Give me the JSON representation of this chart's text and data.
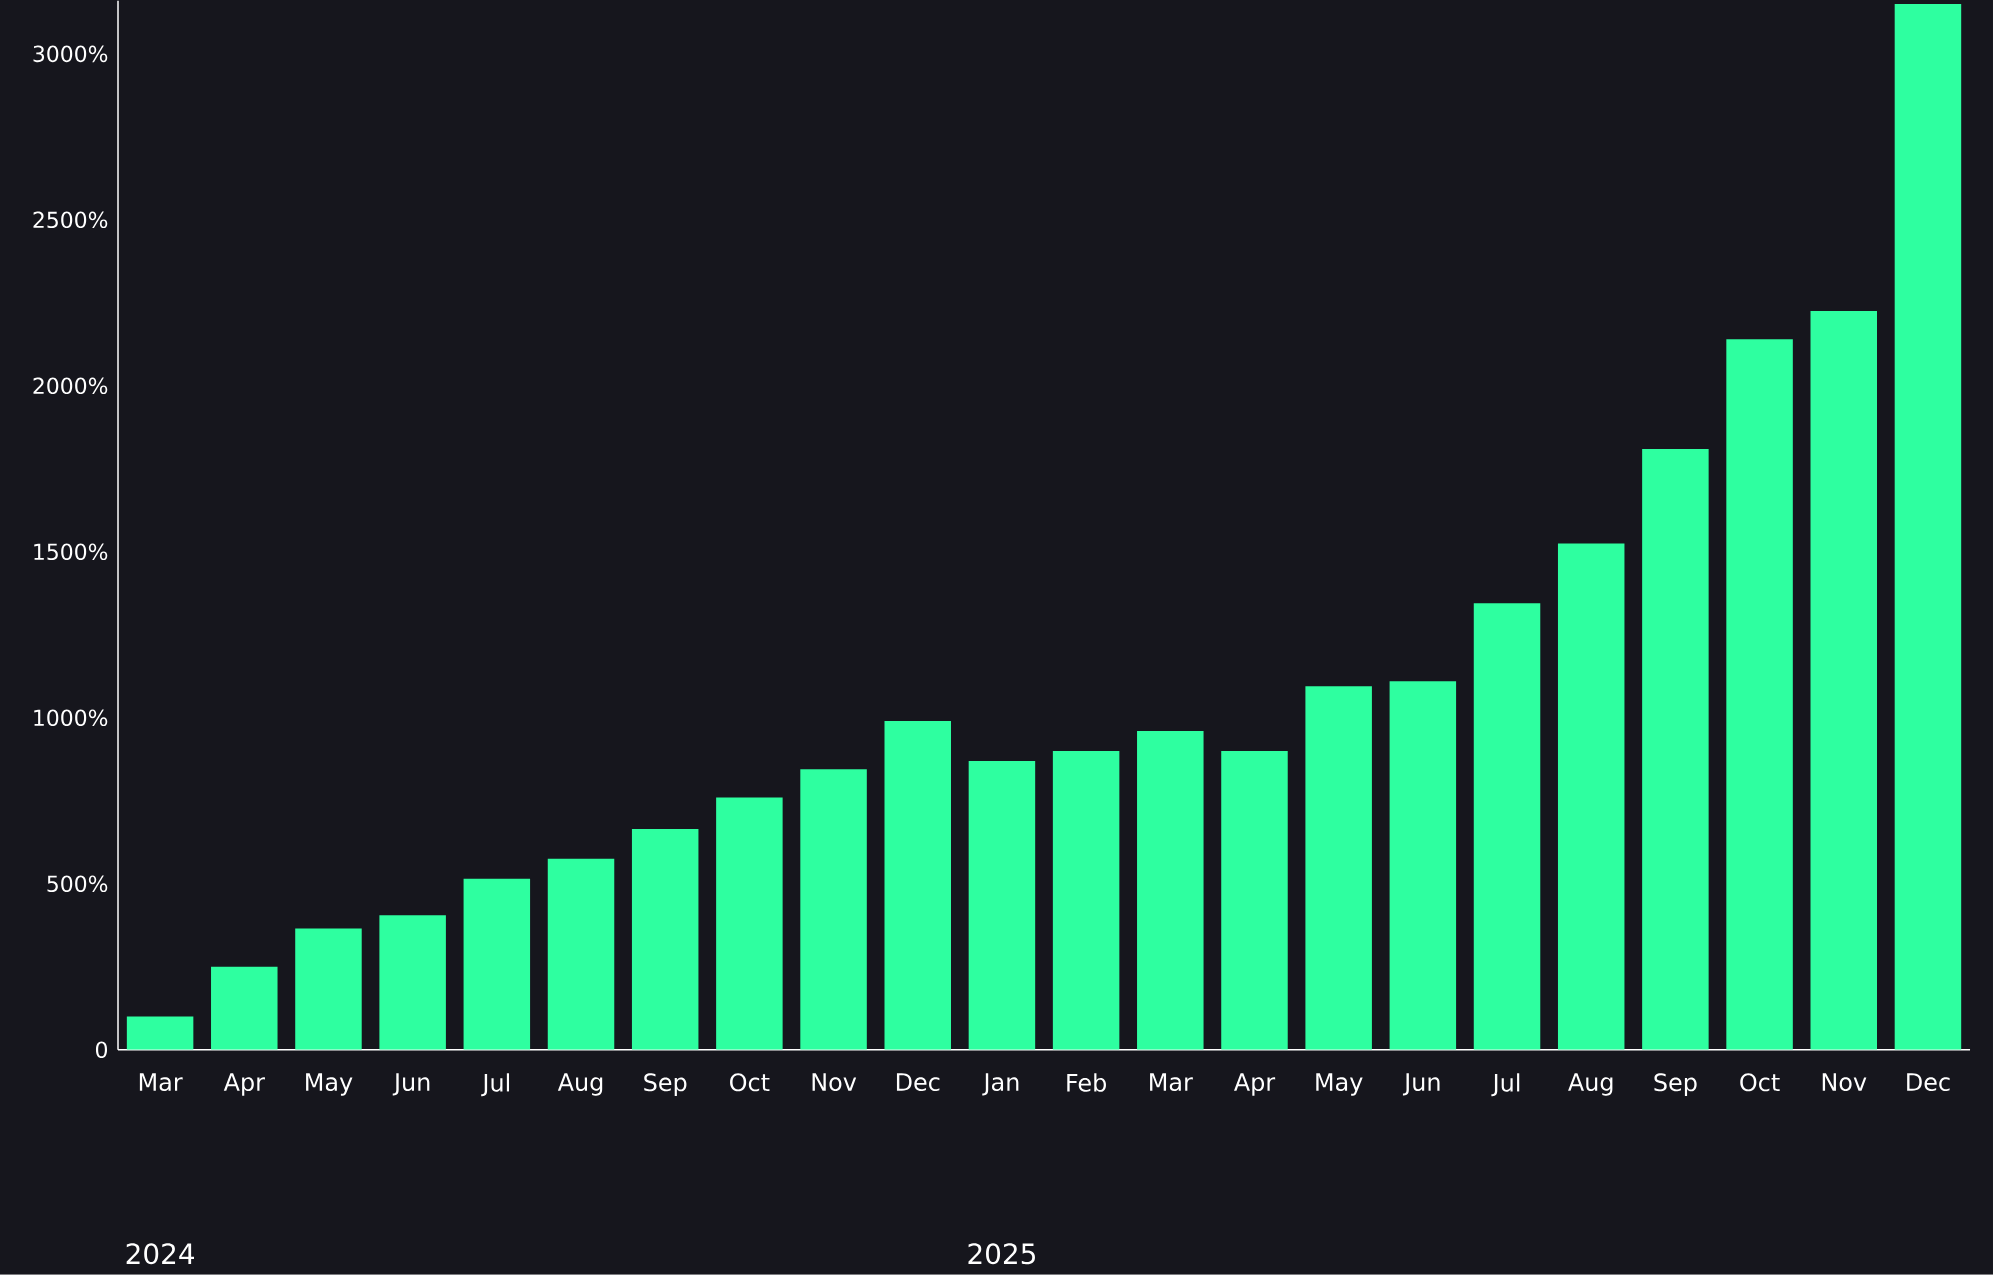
{
  "chart_data": {
    "type": "bar",
    "categories": [
      "Mar",
      "Apr",
      "May",
      "Jun",
      "Jul",
      "Aug",
      "Sep",
      "Oct",
      "Nov",
      "Dec",
      "Jan",
      "Feb",
      "Mar",
      "Apr",
      "May",
      "Jun",
      "Jul",
      "Aug",
      "Sep",
      "Oct",
      "Nov",
      "Dec"
    ],
    "values": [
      100,
      250,
      365,
      405,
      515,
      575,
      665,
      760,
      845,
      990,
      870,
      900,
      960,
      900,
      1095,
      1110,
      1345,
      1525,
      1810,
      2140,
      2225,
      3150
    ],
    "color": "#2effa0",
    "ylim": [
      0,
      3160
    ],
    "yticks": [
      0,
      {
        "value": 500,
        "label": "500%"
      },
      {
        "value": 1000,
        "label": "1000%"
      },
      {
        "value": 1500,
        "label": "1500%"
      },
      {
        "value": 2000,
        "label": "2000%"
      },
      {
        "value": 2500,
        "label": "2500%"
      },
      {
        "value": 3000,
        "label": "3000%"
      }
    ],
    "grid": false,
    "annotations": [
      "2024",
      "2025"
    ]
  }
}
